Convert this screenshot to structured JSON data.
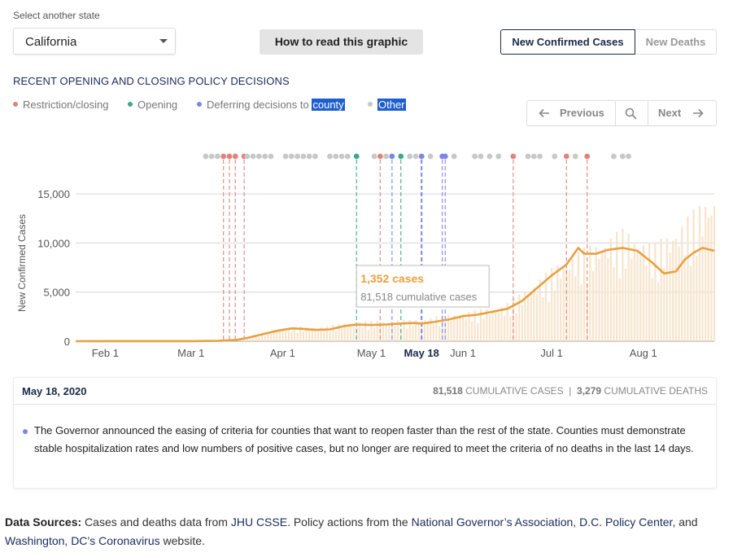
{
  "state_selector": {
    "label": "Select another state",
    "value": "California"
  },
  "howto_button": "How to read this graphic",
  "metric_toggle": {
    "active": "New Confirmed Cases",
    "inactive": "New Deaths"
  },
  "policy_section": {
    "title": "RECENT OPENING AND CLOSING POLICY DECISIONS",
    "legend": [
      {
        "label": "Restriction/closing",
        "color": "#e0837a"
      },
      {
        "label": "Opening",
        "color": "#3aaa8a"
      },
      {
        "label": "Deferring decisions to",
        "label_highlight": "county",
        "color": "#7b86e6"
      },
      {
        "label_highlight": "Other",
        "color": "#c8c8c8"
      }
    ]
  },
  "nav": {
    "previous": "Previous",
    "next": "Next",
    "prev_icon": "arrow-left-icon",
    "search_icon": "search-icon",
    "next_icon": "arrow-right-icon"
  },
  "chart_data": {
    "type": "bar+line",
    "ylabel": "New Confirmed Cases",
    "ylim": [
      0,
      16000
    ],
    "yticks": [
      0,
      5000,
      10000,
      15000
    ],
    "ytick_labels": [
      "0",
      "5,000",
      "10,000",
      "15,000"
    ],
    "xticks": [
      {
        "date": "2020-02-01",
        "label": "Feb 1"
      },
      {
        "date": "2020-03-01",
        "label": "Mar 1"
      },
      {
        "date": "2020-04-01",
        "label": "Apr 1"
      },
      {
        "date": "2020-05-01",
        "label": "May 1"
      },
      {
        "date": "2020-05-18",
        "label": "May 18",
        "selected": true
      },
      {
        "date": "2020-06-01",
        "label": "Jun 1"
      },
      {
        "date": "2020-07-01",
        "label": "Jul 1"
      },
      {
        "date": "2020-08-01",
        "label": "Aug 1"
      }
    ],
    "x_start": "2020-01-22",
    "x_end": "2020-08-25",
    "series": [
      {
        "name": "7-day average",
        "kind": "line",
        "color": "#e8a040",
        "points": [
          [
            "2020-01-22",
            0
          ],
          [
            "2020-03-01",
            5
          ],
          [
            "2020-03-10",
            30
          ],
          [
            "2020-03-16",
            120
          ],
          [
            "2020-03-20",
            330
          ],
          [
            "2020-03-25",
            700
          ],
          [
            "2020-03-30",
            1050
          ],
          [
            "2020-04-04",
            1300
          ],
          [
            "2020-04-08",
            1250
          ],
          [
            "2020-04-12",
            1150
          ],
          [
            "2020-04-17",
            1200
          ],
          [
            "2020-04-22",
            1550
          ],
          [
            "2020-04-26",
            1700
          ],
          [
            "2020-05-01",
            1650
          ],
          [
            "2020-05-06",
            1700
          ],
          [
            "2020-05-11",
            1800
          ],
          [
            "2020-05-15",
            1850
          ],
          [
            "2020-05-18",
            1800
          ],
          [
            "2020-05-22",
            1950
          ],
          [
            "2020-05-27",
            2200
          ],
          [
            "2020-06-01",
            2550
          ],
          [
            "2020-06-06",
            2700
          ],
          [
            "2020-06-11",
            3000
          ],
          [
            "2020-06-16",
            3300
          ],
          [
            "2020-06-21",
            4100
          ],
          [
            "2020-06-26",
            5400
          ],
          [
            "2020-07-01",
            6700
          ],
          [
            "2020-07-06",
            7800
          ],
          [
            "2020-07-10",
            9500
          ],
          [
            "2020-07-12",
            8900
          ],
          [
            "2020-07-16",
            8900
          ],
          [
            "2020-07-20",
            9300
          ],
          [
            "2020-07-25",
            9500
          ],
          [
            "2020-07-30",
            9200
          ],
          [
            "2020-08-04",
            8000
          ],
          [
            "2020-08-08",
            6900
          ],
          [
            "2020-08-12",
            7100
          ],
          [
            "2020-08-15",
            8300
          ],
          [
            "2020-08-18",
            9000
          ],
          [
            "2020-08-21",
            9500
          ],
          [
            "2020-08-25",
            9200
          ]
        ]
      },
      {
        "name": "daily",
        "kind": "bar",
        "color": "#f7e4cc",
        "envelope": [
          [
            "2020-03-15",
            200
          ],
          [
            "2020-03-25",
            800
          ],
          [
            "2020-04-04",
            1500
          ],
          [
            "2020-04-15",
            1500
          ],
          [
            "2020-04-25",
            2000
          ],
          [
            "2020-05-15",
            2200
          ],
          [
            "2020-06-01",
            3000
          ],
          [
            "2020-06-15",
            3700
          ],
          [
            "2020-06-25",
            6000
          ],
          [
            "2020-07-05",
            8500
          ],
          [
            "2020-07-15",
            10000
          ],
          [
            "2020-07-25",
            11500
          ],
          [
            "2020-08-05",
            10000
          ],
          [
            "2020-08-15",
            12500
          ],
          [
            "2020-08-23",
            15000
          ]
        ]
      }
    ],
    "policy_events": [
      {
        "date": "2020-03-12",
        "type": "restriction"
      },
      {
        "date": "2020-03-14",
        "type": "restriction"
      },
      {
        "date": "2020-03-16",
        "type": "restriction"
      },
      {
        "date": "2020-03-19",
        "type": "restriction"
      },
      {
        "date": "2020-04-26",
        "type": "opening"
      },
      {
        "date": "2020-05-04",
        "type": "restriction"
      },
      {
        "date": "2020-05-08",
        "type": "county"
      },
      {
        "date": "2020-05-11",
        "type": "opening"
      },
      {
        "date": "2020-05-18",
        "type": "county"
      },
      {
        "date": "2020-05-25",
        "type": "county"
      },
      {
        "date": "2020-05-26",
        "type": "county"
      },
      {
        "date": "2020-06-18",
        "type": "restriction"
      },
      {
        "date": "2020-07-06",
        "type": "restriction"
      },
      {
        "date": "2020-07-13",
        "type": "restriction"
      }
    ],
    "other_events": [
      "2020-03-06",
      "2020-03-08",
      "2020-03-10",
      "2020-03-20",
      "2020-03-22",
      "2020-03-24",
      "2020-03-26",
      "2020-03-28",
      "2020-04-02",
      "2020-04-04",
      "2020-04-06",
      "2020-04-08",
      "2020-04-10",
      "2020-04-12",
      "2020-04-17",
      "2020-04-19",
      "2020-04-21",
      "2020-04-23",
      "2020-05-02",
      "2020-05-06",
      "2020-05-14",
      "2020-05-16",
      "2020-05-21",
      "2020-05-29",
      "2020-06-05",
      "2020-06-07",
      "2020-06-10",
      "2020-06-13",
      "2020-06-23",
      "2020-06-25",
      "2020-06-27",
      "2020-07-02",
      "2020-07-09",
      "2020-07-22",
      "2020-07-25",
      "2020-07-27"
    ],
    "tooltip": {
      "date": "2020-05-18",
      "cases": "1,352 cases",
      "cumulative": "81,518 cumulative cases"
    }
  },
  "detail": {
    "date": "May 18, 2020",
    "cumulative_cases": "81,518",
    "cumulative_cases_label": "CUMULATIVE CASES",
    "separator": "|",
    "cumulative_deaths": "3,279",
    "cumulative_deaths_label": "CUMULATIVE DEATHS",
    "text": "The Governor announced the easing of criteria for counties that want to reopen faster than the rest of the state. Counties must demonstrate stable hospitalization rates and low numbers of positive cases, but no longer are required to meet the criteria of no deaths in the last 14 days.",
    "dot_color": "#7b86e6"
  },
  "sources": {
    "label": "Data Sources:",
    "t1": " Cases and deaths data from ",
    "l1": "JHU CSSE",
    "t2": ". Policy actions from the ",
    "l2": "National Governor’s Association",
    "t3": ", ",
    "l3": "D.C. Policy Center",
    "t4": ", and ",
    "l4": "Washington, DC’s Coronavirus",
    "t5": " website."
  }
}
